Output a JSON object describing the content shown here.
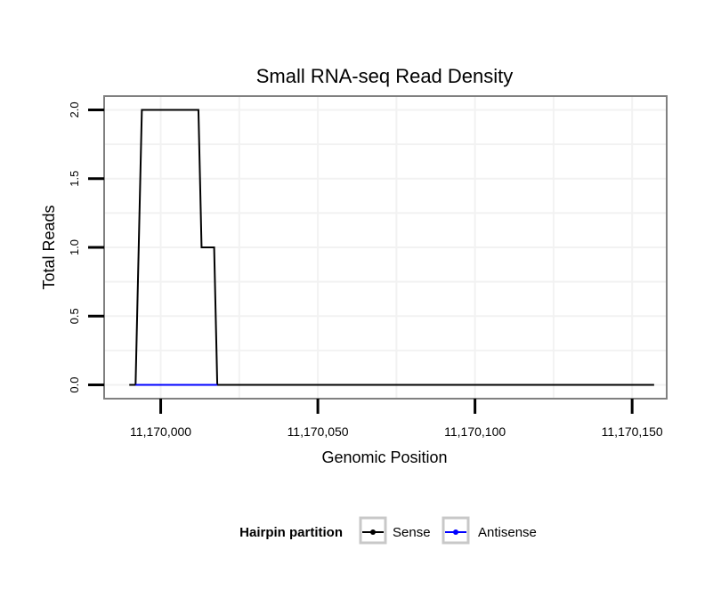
{
  "chart_data": {
    "type": "line",
    "title": "Small RNA-seq Read Density",
    "xlabel": "Genomic Position",
    "ylabel": "Total Reads",
    "xlim": [
      11169982,
      11170161
    ],
    "ylim": [
      -0.1,
      2.1
    ],
    "x_ticks": [
      11170000,
      11170050,
      11170100,
      11170150
    ],
    "x_tick_labels": [
      "11,170,000",
      "11,170,050",
      "11,170,100",
      "11,170,150"
    ],
    "y_ticks": [
      0,
      0.5,
      1,
      1.5,
      2
    ],
    "y_tick_labels": [
      "0.0",
      "0.5",
      "1.0",
      "1.5",
      "2.0"
    ],
    "grid": true,
    "legend": {
      "title": "Hairpin partition",
      "position": "bottom",
      "entries": [
        "Sense",
        "Antisense"
      ]
    },
    "series": [
      {
        "name": "Sense",
        "color": "#000000",
        "x": [
          11169990,
          11169992,
          11169994,
          11170012,
          11170013,
          11170017,
          11170018,
          11170157
        ],
        "y": [
          0,
          0,
          2,
          2,
          1,
          1,
          0,
          0
        ]
      },
      {
        "name": "Antisense",
        "color": "#0000ff",
        "x": [
          11169992,
          11170018
        ],
        "y": [
          0,
          0
        ]
      }
    ]
  }
}
